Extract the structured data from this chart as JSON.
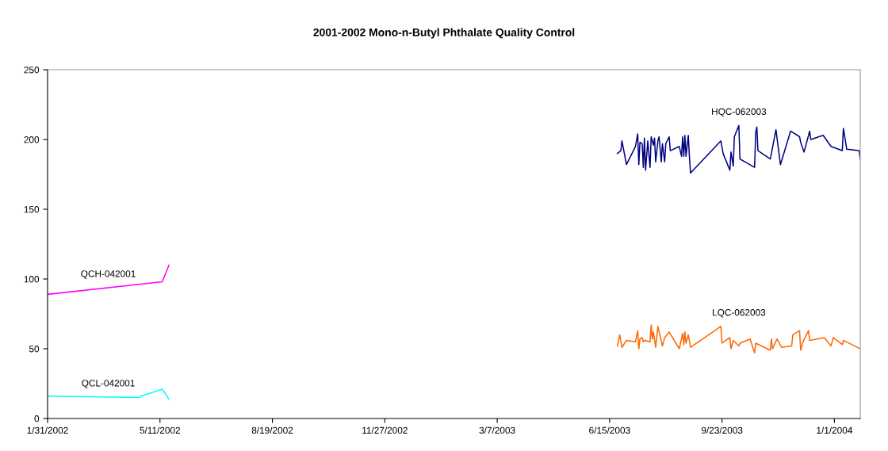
{
  "chart_data": {
    "type": "line",
    "title": "2001-2002 Mono-n-Butyl Phthalate Quality Control",
    "xlim": [
      "2002-01-31",
      "2004-01-24"
    ],
    "ylim": [
      0,
      250
    ],
    "yticks": [
      0,
      50,
      100,
      150,
      200,
      250
    ],
    "xticks": [
      {
        "value": "2002-01-31",
        "label": "1/31/2002"
      },
      {
        "value": "2002-05-11",
        "label": "5/11/2002"
      },
      {
        "value": "2002-08-19",
        "label": "8/19/2002"
      },
      {
        "value": "2002-11-27",
        "label": "11/27/2002"
      },
      {
        "value": "2003-03-07",
        "label": "3/7/2003"
      },
      {
        "value": "2003-06-15",
        "label": "6/15/2003"
      },
      {
        "value": "2003-09-23",
        "label": "9/23/2003"
      },
      {
        "value": "2004-01-01",
        "label": "1/1/2004"
      }
    ],
    "grid": false,
    "legend": false,
    "marker": "none",
    "line_style": "solid",
    "series": [
      {
        "name": "QCH-042001",
        "color": "#ff00ff",
        "x": [
          "2002-01-31",
          "2002-05-13",
          "2002-05-19"
        ],
        "values": [
          89,
          98,
          110
        ]
      },
      {
        "name": "QCL-042001",
        "color": "#00ffff",
        "x": [
          "2002-01-31",
          "2002-04-23",
          "2002-04-24",
          "2002-05-13",
          "2002-05-19"
        ],
        "values": [
          16,
          15,
          16,
          21,
          14
        ]
      },
      {
        "name": "HQC-062003",
        "color": "#000080",
        "x": [
          "2003-06-22",
          "2003-06-25",
          "2003-06-26",
          "2003-06-30",
          "2003-07-08",
          "2003-07-10",
          "2003-07-11",
          "2003-07-12",
          "2003-07-14",
          "2003-07-15",
          "2003-07-16",
          "2003-07-17",
          "2003-07-19",
          "2003-07-21",
          "2003-07-22",
          "2003-07-24",
          "2003-07-25",
          "2003-07-26",
          "2003-07-28",
          "2003-07-29",
          "2003-07-31",
          "2003-08-01",
          "2003-08-03",
          "2003-08-04",
          "2003-08-07",
          "2003-08-08",
          "2003-08-16",
          "2003-08-18",
          "2003-08-19",
          "2003-08-20",
          "2003-08-21",
          "2003-08-22",
          "2003-08-24",
          "2003-08-25",
          "2003-08-26",
          "2003-09-22",
          "2003-09-24",
          "2003-09-30",
          "2003-10-01",
          "2003-10-03",
          "2003-10-04",
          "2003-10-08",
          "2003-10-09",
          "2003-10-22",
          "2003-10-23",
          "2003-10-24",
          "2003-10-25",
          "2003-11-05",
          "2003-11-10",
          "2003-11-14",
          "2003-11-23",
          "2003-12-01",
          "2003-12-02",
          "2003-12-05",
          "2003-12-10",
          "2003-12-11",
          "2003-12-22",
          "2003-12-29",
          "2004-01-08",
          "2004-01-09",
          "2004-01-12",
          "2004-01-23",
          "2004-01-24"
        ],
        "values": [
          190,
          192,
          199,
          182,
          195,
          204,
          182,
          198,
          197,
          180,
          201,
          178,
          199,
          180,
          202,
          196,
          201,
          184,
          199,
          202,
          184,
          197,
          184,
          197,
          202,
          192,
          195,
          188,
          202,
          188,
          203,
          188,
          203,
          188,
          176,
          199,
          190,
          178,
          191,
          181,
          202,
          210,
          186,
          180,
          205,
          209,
          192,
          186,
          207,
          182,
          206,
          202,
          198,
          191,
          206,
          200,
          203,
          195,
          192,
          208,
          193,
          192,
          186
        ]
      },
      {
        "name": "LQC-062003",
        "color": "#ff6600",
        "x": [
          "2003-06-22",
          "2003-06-24",
          "2003-06-26",
          "2003-06-30",
          "2003-07-08",
          "2003-07-10",
          "2003-07-11",
          "2003-07-12",
          "2003-07-14",
          "2003-07-15",
          "2003-07-16",
          "2003-07-21",
          "2003-07-22",
          "2003-07-23",
          "2003-07-24",
          "2003-07-26",
          "2003-07-28",
          "2003-07-30",
          "2003-08-01",
          "2003-08-03",
          "2003-08-05",
          "2003-08-07",
          "2003-08-16",
          "2003-08-19",
          "2003-08-20",
          "2003-08-21",
          "2003-08-22",
          "2003-08-24",
          "2003-08-26",
          "2003-09-22",
          "2003-09-23",
          "2003-09-30",
          "2003-10-01",
          "2003-10-03",
          "2003-10-08",
          "2003-10-09",
          "2003-10-18",
          "2003-10-22",
          "2003-10-23",
          "2003-11-05",
          "2003-11-06",
          "2003-11-07",
          "2003-11-11",
          "2003-11-15",
          "2003-11-24",
          "2003-11-25",
          "2003-12-01",
          "2003-12-02",
          "2003-12-04",
          "2003-12-09",
          "2003-12-10",
          "2003-12-23",
          "2003-12-29",
          "2003-12-31",
          "2004-01-08",
          "2004-01-09",
          "2004-01-24"
        ],
        "values": [
          52,
          60,
          51,
          56,
          55,
          63,
          50,
          57,
          58,
          55,
          56,
          55,
          67,
          57,
          62,
          51,
          66,
          59,
          52,
          58,
          60,
          62,
          50,
          61,
          53,
          62,
          54,
          60,
          51,
          66,
          54,
          58,
          50,
          56,
          52,
          54,
          57,
          47,
          54,
          49,
          57,
          50,
          57,
          51,
          52,
          60,
          63,
          49,
          55,
          63,
          56,
          58,
          52,
          58,
          53,
          56,
          50
        ]
      }
    ]
  }
}
